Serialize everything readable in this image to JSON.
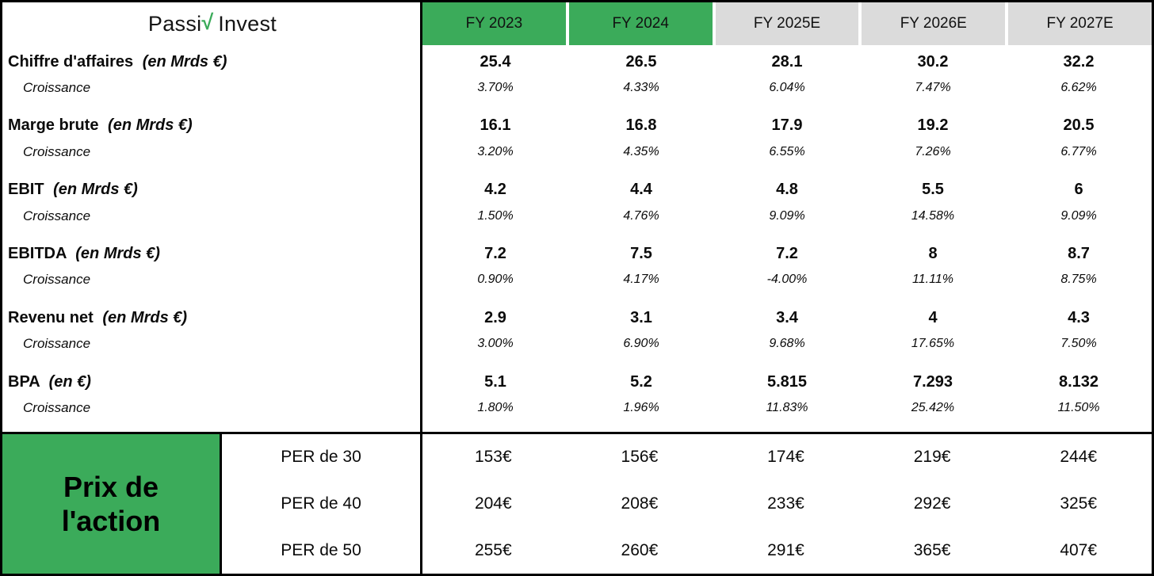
{
  "logo": {
    "prefix": "Passi",
    "mark": "√",
    "suffix": "Invest"
  },
  "columns": [
    {
      "label": "FY 2023"
    },
    {
      "label": "FY 2024"
    },
    {
      "label": "FY 2025E"
    },
    {
      "label": "FY 2026E"
    },
    {
      "label": "FY 2027E"
    }
  ],
  "metrics": [
    {
      "label": "Chiffre d'affaires",
      "unit": "(en Mrds €)",
      "sub_label": "Croissance",
      "values": [
        "25.4",
        "26.5",
        "28.1",
        "30.2",
        "32.2"
      ],
      "growth": [
        "3.70%",
        "4.33%",
        "6.04%",
        "7.47%",
        "6.62%"
      ]
    },
    {
      "label": "Marge brute",
      "unit": "(en Mrds €)",
      "sub_label": "Croissance",
      "values": [
        "16.1",
        "16.8",
        "17.9",
        "19.2",
        "20.5"
      ],
      "growth": [
        "3.20%",
        "4.35%",
        "6.55%",
        "7.26%",
        "6.77%"
      ]
    },
    {
      "label": "EBIT",
      "unit": "(en Mrds €)",
      "sub_label": "Croissance",
      "values": [
        "4.2",
        "4.4",
        "4.8",
        "5.5",
        "6"
      ],
      "growth": [
        "1.50%",
        "4.76%",
        "9.09%",
        "14.58%",
        "9.09%"
      ]
    },
    {
      "label": "EBITDA",
      "unit": "(en Mrds €)",
      "sub_label": "Croissance",
      "values": [
        "7.2",
        "7.5",
        "7.2",
        "8",
        "8.7"
      ],
      "growth": [
        "0.90%",
        "4.17%",
        "-4.00%",
        "11.11%",
        "8.75%"
      ]
    },
    {
      "label": "Revenu net",
      "unit": "(en Mrds €)",
      "sub_label": "Croissance",
      "values": [
        "2.9",
        "3.1",
        "3.4",
        "4",
        "4.3"
      ],
      "growth": [
        "3.00%",
        "6.90%",
        "9.68%",
        "17.65%",
        "7.50%"
      ]
    },
    {
      "label": "BPA",
      "unit": "(en €)",
      "sub_label": "Croissance",
      "values": [
        "5.1",
        "5.2",
        "5.815",
        "7.293",
        "8.132"
      ],
      "growth": [
        "1.80%",
        "1.96%",
        "11.83%",
        "25.42%",
        "11.50%"
      ]
    }
  ],
  "price_section": {
    "title_line1": "Prix de",
    "title_line2": "l'action",
    "rows": [
      {
        "label": "PER de 30",
        "values": [
          "153€",
          "156€",
          "174€",
          "219€",
          "244€"
        ]
      },
      {
        "label": "PER de 40",
        "values": [
          "204€",
          "208€",
          "233€",
          "292€",
          "325€"
        ]
      },
      {
        "label": "PER de 50",
        "values": [
          "255€",
          "260€",
          "291€",
          "365€",
          "407€"
        ]
      }
    ]
  },
  "colors": {
    "green": "#3bab5a",
    "gray": "#dbdbdb",
    "ink": "#0b0b0b"
  },
  "chart_data": {
    "type": "table",
    "title": "Passiv Invest — projections financières et prix de l'action",
    "columns": [
      "",
      "FY 2023",
      "FY 2024",
      "FY 2025E",
      "FY 2026E",
      "FY 2027E"
    ],
    "rows": [
      [
        "Chiffre d'affaires (en Mrds €)",
        25.4,
        26.5,
        28.1,
        30.2,
        32.2
      ],
      [
        "Croissance",
        "3.70%",
        "4.33%",
        "6.04%",
        "7.47%",
        "6.62%"
      ],
      [
        "Marge brute (en Mrds €)",
        16.1,
        16.8,
        17.9,
        19.2,
        20.5
      ],
      [
        "Croissance",
        "3.20%",
        "4.35%",
        "6.55%",
        "7.26%",
        "6.77%"
      ],
      [
        "EBIT (en Mrds €)",
        4.2,
        4.4,
        4.8,
        5.5,
        6
      ],
      [
        "Croissance",
        "1.50%",
        "4.76%",
        "9.09%",
        "14.58%",
        "9.09%"
      ],
      [
        "EBITDA (en Mrds €)",
        7.2,
        7.5,
        7.2,
        8,
        8.7
      ],
      [
        "Croissance",
        "0.90%",
        "4.17%",
        "-4.00%",
        "11.11%",
        "8.75%"
      ],
      [
        "Revenu net (en Mrds €)",
        2.9,
        3.1,
        3.4,
        4,
        4.3
      ],
      [
        "Croissance",
        "3.00%",
        "6.90%",
        "9.68%",
        "17.65%",
        "7.50%"
      ],
      [
        "BPA (en €)",
        5.1,
        5.2,
        5.815,
        7.293,
        8.132
      ],
      [
        "Croissance",
        "1.80%",
        "1.96%",
        "11.83%",
        "25.42%",
        "11.50%"
      ],
      [
        "Prix de l'action — PER de 30",
        "153€",
        "156€",
        "174€",
        "219€",
        "244€"
      ],
      [
        "Prix de l'action — PER de 40",
        "204€",
        "208€",
        "233€",
        "292€",
        "325€"
      ],
      [
        "Prix de l'action — PER de 50",
        "255€",
        "260€",
        "291€",
        "365€",
        "407€"
      ]
    ]
  }
}
